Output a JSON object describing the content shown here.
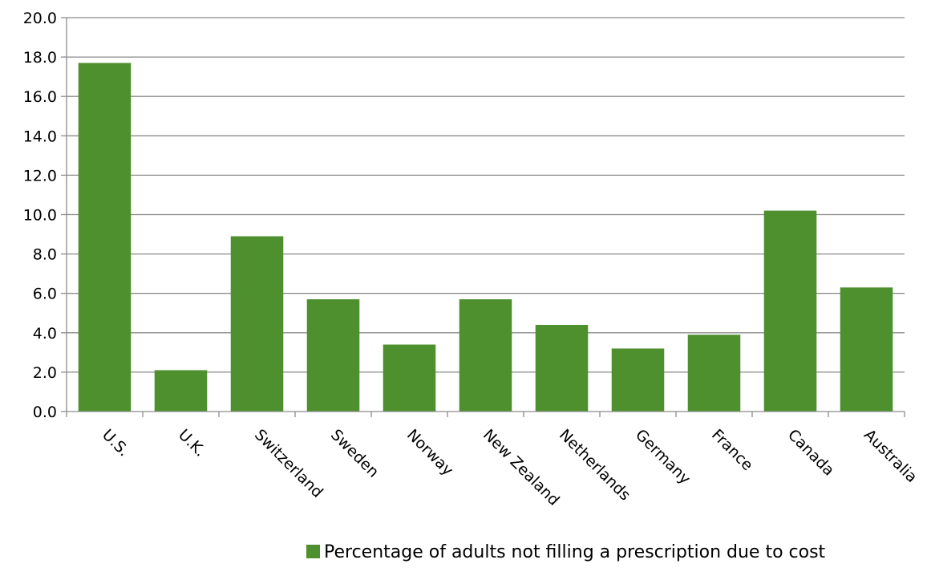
{
  "colors": {
    "bar": "#4e8f2e",
    "grid": "#8c8c8c",
    "axis": "#8c8c8c"
  },
  "legend": {
    "label": "Percentage of adults not filling a prescription due to cost"
  },
  "chart_data": {
    "type": "bar",
    "categories": [
      "U.S.",
      "U.K.",
      "Switzerland",
      "Sweden",
      "Norway",
      "New Zealand",
      "Netherlands",
      "Germany",
      "France",
      "Canada",
      "Australia"
    ],
    "series": [
      {
        "name": "Percentage of adults not filling a prescription due to cost",
        "values": [
          17.7,
          2.1,
          8.9,
          5.7,
          3.4,
          5.7,
          4.4,
          3.2,
          3.9,
          10.2,
          6.3
        ]
      }
    ],
    "ylim": [
      0,
      20
    ],
    "yticks": [
      "0.0",
      "2.0",
      "4.0",
      "6.0",
      "8.0",
      "10.0",
      "12.0",
      "14.0",
      "16.0",
      "18.0",
      "20.0"
    ],
    "grid": true,
    "legend_position": "bottom"
  }
}
